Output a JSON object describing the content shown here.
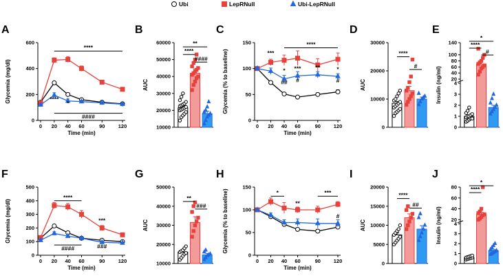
{
  "colors": {
    "ubi": "#000000",
    "ubi_fill": "#ffffff",
    "lep": "#e8413b",
    "lep_fill": "#f79494",
    "lep_bar": "#f59a9a",
    "blue": "#2167e0",
    "blue_bar": "#2e9af0"
  },
  "legend": [
    {
      "label": "Ubi",
      "marker": "circle",
      "series": "ubi"
    },
    {
      "label": "LepRNull",
      "marker": "square",
      "series": "lep"
    },
    {
      "label": "Ubi-LepRNull",
      "marker": "triangle",
      "series": "blue"
    }
  ],
  "chart_data": [
    {
      "panel": "A",
      "type": "line",
      "xlabel": "Time (min)",
      "ylabel": "Glycemia (mg/dl)",
      "x": [
        0,
        20,
        40,
        60,
        90,
        120
      ],
      "xticks": [
        "0",
        "20",
        "40",
        "60",
        "90",
        "120"
      ],
      "ylim": [
        0,
        600
      ],
      "yticks": [
        "0",
        "200",
        "400",
        "600"
      ],
      "series": [
        {
          "name": "Ubi",
          "key": "ubi",
          "values": [
            140,
            290,
            200,
            160,
            140,
            128
          ],
          "err": [
            8,
            10,
            8,
            6,
            5,
            5
          ]
        },
        {
          "name": "LepRNull",
          "key": "lep",
          "values": [
            135,
            465,
            470,
            400,
            295,
            240
          ],
          "err": [
            10,
            18,
            22,
            20,
            15,
            12
          ]
        },
        {
          "name": "Ubi-LepRNull",
          "key": "blue",
          "values": [
            120,
            195,
            150,
            145,
            135,
            125
          ],
          "err": [
            8,
            18,
            15,
            10,
            8,
            6
          ]
        }
      ],
      "annotations": [
        {
          "text": "****",
          "x1": 20,
          "x2": 120,
          "y": 535,
          "kind": "bar"
        },
        {
          "text": "****",
          "x": 20,
          "y": 150,
          "kind": "text"
        },
        {
          "text": "*",
          "x": 40,
          "y": 118,
          "kind": "text"
        },
        {
          "text": "####",
          "x1": 20,
          "x2": 120,
          "y": 55,
          "kind": "barBelow"
        }
      ]
    },
    {
      "panel": "B",
      "type": "bar",
      "ylabel": "AUC",
      "ylim": [
        10000,
        60000
      ],
      "yticks": [
        "10000",
        "20000",
        "30000",
        "40000",
        "50000",
        "60000"
      ],
      "categories": [
        "Ubi",
        "LepRNull",
        "Ubi-LepRNull"
      ],
      "values": [
        21500,
        42000,
        18000
      ],
      "err": [
        1200,
        2500,
        1500
      ],
      "points": [
        [
          14000,
          16000,
          17000,
          18000,
          19000,
          20000,
          20500,
          21000,
          21500,
          22000,
          22500,
          23000,
          23500,
          24000,
          25000,
          26000,
          28000,
          30000
        ],
        [
          32000,
          35000,
          37000,
          39000,
          40000,
          41000,
          42000,
          43000,
          44000,
          45000,
          46000,
          48000,
          50000,
          53000
        ],
        [
          12000,
          14000,
          16000,
          17000,
          18000,
          19000,
          20000,
          22000,
          25000
        ]
      ],
      "annotations": [
        {
          "text": "**",
          "c1": 0,
          "c2": 2,
          "y": 57500
        },
        {
          "text": "****",
          "c1": 0,
          "c2": 1,
          "y": 53000
        },
        {
          "text": "####",
          "c1": 1,
          "c2": 2,
          "y": 48500
        }
      ]
    },
    {
      "panel": "C",
      "type": "line",
      "xlabel": "Time (min)",
      "ylabel": "Glycemia (% to baseline)",
      "x": [
        0,
        20,
        40,
        60,
        90,
        120
      ],
      "xticks": [
        "0",
        "20",
        "40",
        "60",
        "90",
        "120"
      ],
      "ylim": [
        0,
        150
      ],
      "yticks": [
        "0",
        "50",
        "100",
        "150"
      ],
      "series": [
        {
          "name": "Ubi",
          "key": "ubi",
          "values": [
            100,
            73,
            51,
            45,
            50,
            55
          ],
          "err": [
            2,
            3,
            3,
            2,
            3,
            4
          ]
        },
        {
          "name": "LepRNull",
          "key": "lep",
          "values": [
            100,
            112,
            116,
            120,
            107,
            118
          ],
          "err": [
            3,
            6,
            10,
            14,
            12,
            12
          ]
        },
        {
          "name": "Ubi-LepRNull",
          "key": "blue",
          "values": [
            100,
            95,
            80,
            86,
            88,
            85
          ],
          "err": [
            3,
            6,
            7,
            8,
            6,
            5
          ]
        }
      ],
      "annotations": [
        {
          "text": "***",
          "x": 20,
          "y": 126,
          "kind": "text"
        },
        {
          "text": "****",
          "x1": 40,
          "x2": 120,
          "y": 140,
          "kind": "bar"
        },
        {
          "text": "*",
          "x": 40,
          "y": 92,
          "kind": "text"
        },
        {
          "text": "##",
          "x": 40,
          "y": 70,
          "kind": "text"
        },
        {
          "text": "***",
          "x": 60,
          "y": 96,
          "kind": "text"
        },
        {
          "text": "#",
          "x": 60,
          "y": 74,
          "kind": "text"
        },
        {
          "text": "**",
          "x": 90,
          "y": 98,
          "kind": "text"
        },
        {
          "text": "*",
          "x": 120,
          "y": 95,
          "kind": "text"
        },
        {
          "text": "#",
          "x": 120,
          "y": 73,
          "kind": "text"
        }
      ]
    },
    {
      "panel": "D",
      "type": "bar",
      "ylabel": "AUC",
      "ylim": [
        0,
        30000
      ],
      "yticks": [
        "0",
        "10000",
        "20000",
        "30000"
      ],
      "categories": [
        "Ubi",
        "LepRNull",
        "Ubi-LepRNull"
      ],
      "values": [
        8500,
        13000,
        10000
      ],
      "err": [
        600,
        1500,
        700
      ],
      "points": [
        [
          4000,
          5000,
          5500,
          6000,
          6500,
          7000,
          7500,
          8000,
          8500,
          9000,
          9500,
          10000,
          11000,
          12000,
          13000
        ],
        [
          8000,
          9000,
          10000,
          11000,
          12000,
          13000,
          14000,
          16000,
          18000,
          24000
        ],
        [
          8000,
          9000,
          10000,
          10500,
          11000,
          12000
        ]
      ],
      "annotations": [
        {
          "text": "****",
          "c1": 0,
          "c2": 1,
          "y": 25000
        },
        {
          "text": "#",
          "c1": 1,
          "c2": 2,
          "y": 20500
        }
      ]
    },
    {
      "panel": "E",
      "type": "bar",
      "ylabel": "Insulin (ng/ml)",
      "yscale": "broken",
      "yticks": [
        "0",
        "1",
        "2",
        "3",
        "4",
        "20",
        "40",
        "60",
        "80",
        "100",
        "140"
      ],
      "categories": [
        "Ubi",
        "LepRNull",
        "Ubi-LepRNull"
      ],
      "values": [
        1.0,
        70,
        1.8
      ],
      "err": [
        0.1,
        12,
        0.2
      ],
      "points": [
        [
          0.5,
          0.6,
          0.7,
          0.8,
          0.8,
          0.9,
          1.0,
          1.0,
          1.1,
          1.2,
          1.3,
          1.5,
          1.8
        ],
        [
          35,
          45,
          55,
          60,
          65,
          70,
          75,
          80,
          90,
          100,
          120
        ],
        [
          1.2,
          1.4,
          1.6,
          1.8,
          2.0,
          2.2,
          2.6,
          3.0
        ]
      ],
      "annotations": [
        {
          "text": "*",
          "c1": 0,
          "c2": 2,
          "y": "top"
        },
        {
          "text": "****",
          "c1": 0,
          "c2": 1,
          "y": "mid"
        },
        {
          "text": "#",
          "c1": 1,
          "c2": 2,
          "y": "low"
        }
      ]
    },
    {
      "panel": "F",
      "type": "line",
      "xlabel": "Time (min)",
      "ylabel": "Glycemia (mg/dl)",
      "x": [
        0,
        20,
        40,
        60,
        90,
        120
      ],
      "xticks": [
        "0",
        "20",
        "40",
        "60",
        "90",
        "120"
      ],
      "ylim": [
        0,
        500
      ],
      "yticks": [
        "0",
        "100",
        "200",
        "300",
        "400",
        "500"
      ],
      "series": [
        {
          "name": "Ubi",
          "key": "ubi",
          "values": [
            125,
            215,
            165,
            125,
            110,
            100
          ],
          "err": [
            6,
            10,
            8,
            6,
            5,
            5
          ]
        },
        {
          "name": "LepRNull",
          "key": "lep",
          "values": [
            130,
            365,
            355,
            300,
            200,
            150
          ],
          "err": [
            12,
            22,
            25,
            28,
            18,
            12
          ]
        },
        {
          "name": "Ubi-LepRNull",
          "key": "blue",
          "values": [
            110,
            160,
            140,
            125,
            95,
            90
          ],
          "err": [
            8,
            12,
            10,
            8,
            6,
            6
          ]
        }
      ],
      "annotations": [
        {
          "text": "****",
          "x1": 20,
          "x2": 60,
          "y": 400,
          "kind": "bar"
        },
        {
          "text": "***",
          "x": 90,
          "y": 240,
          "kind": "text"
        },
        {
          "text": "####",
          "x1": 20,
          "x2": 60,
          "y": 75,
          "kind": "barBelow"
        },
        {
          "text": "###",
          "x": 90,
          "y": 50,
          "kind": "text"
        }
      ]
    },
    {
      "panel": "G",
      "type": "bar",
      "ylabel": "AUC",
      "ylim": [
        10000,
        50000
      ],
      "yticks": [
        "10000",
        "20000",
        "30000",
        "40000",
        "50000"
      ],
      "categories": [
        "Ubi",
        "LepRNull",
        "Ubi-LepRNull"
      ],
      "values": [
        16000,
        31500,
        14500
      ],
      "err": [
        900,
        3000,
        800
      ],
      "points": [
        [
          12000,
          13000,
          14000,
          15000,
          15500,
          16000,
          16500,
          17000,
          18000,
          19000
        ],
        [
          24000,
          27000,
          30000,
          32000,
          34000,
          37000,
          40000,
          42000
        ],
        [
          12000,
          13000,
          14000,
          14500,
          15000,
          16000,
          17000
        ]
      ],
      "annotations": [
        {
          "text": "**",
          "c1": 0,
          "c2": 1,
          "y": 42500
        },
        {
          "text": "###",
          "c1": 1,
          "c2": 2,
          "y": 38500
        }
      ]
    },
    {
      "panel": "H",
      "type": "line",
      "xlabel": "Time (min)",
      "ylabel": "Glycemia (% to baseline)",
      "x": [
        0,
        20,
        40,
        60,
        90,
        120
      ],
      "xticks": [
        "0",
        "20",
        "40",
        "60",
        "90",
        "120"
      ],
      "ylim": [
        0,
        150
      ],
      "yticks": [
        "0",
        "50",
        "100",
        "150"
      ],
      "series": [
        {
          "name": "Ubi",
          "key": "ubi",
          "values": [
            100,
            85,
            68,
            57,
            53,
            62
          ],
          "err": [
            2,
            3,
            3,
            3,
            4,
            3
          ]
        },
        {
          "name": "LepRNull",
          "key": "lep",
          "values": [
            100,
            118,
            104,
            100,
            100,
            112
          ],
          "err": [
            3,
            8,
            12,
            6,
            8,
            6
          ]
        },
        {
          "name": "Ubi-LepRNull",
          "key": "blue",
          "values": [
            100,
            88,
            72,
            72,
            70,
            70
          ],
          "err": [
            3,
            5,
            6,
            8,
            10,
            8
          ]
        }
      ],
      "annotations": [
        {
          "text": "*",
          "x1": 20,
          "x2": 40,
          "y": 130,
          "kind": "bar"
        },
        {
          "text": "***",
          "x1": 90,
          "x2": 120,
          "y": 130,
          "kind": "bar"
        },
        {
          "text": "**",
          "x": 60,
          "y": 110,
          "kind": "text"
        },
        {
          "text": "#",
          "x": 120,
          "y": 82,
          "kind": "text"
        }
      ]
    },
    {
      "panel": "I",
      "type": "bar",
      "ylabel": "AUC",
      "ylim": [
        0,
        20000
      ],
      "yticks": [
        "0",
        "5000",
        "10000",
        "15000",
        "20000"
      ],
      "categories": [
        "Ubi",
        "LepRNull",
        "Ubi-LepRNull"
      ],
      "values": [
        7500,
        12000,
        9000
      ],
      "err": [
        500,
        1000,
        900
      ],
      "points": [
        [
          5000,
          5500,
          6000,
          6500,
          7000,
          7500,
          8000,
          8500,
          9000,
          10000
        ],
        [
          9000,
          10000,
          11000,
          12000,
          13000,
          14000,
          15000
        ],
        [
          6000,
          7000,
          8000,
          9000,
          10000,
          12000,
          13000
        ]
      ],
      "annotations": [
        {
          "text": "****",
          "c1": 0,
          "c2": 1,
          "y": 17000
        },
        {
          "text": "##",
          "c1": 1,
          "c2": 2,
          "y": 14500
        }
      ]
    },
    {
      "panel": "J",
      "type": "bar",
      "ylabel": "Insulin (ng/ml)",
      "yscale": "broken",
      "yticks": [
        "0",
        "1",
        "2",
        "3",
        "4",
        "20",
        "40",
        "60",
        "80"
      ],
      "categories": [
        "Ubi",
        "LepRNull",
        "Ubi-LepRNull"
      ],
      "values": [
        0.6,
        30,
        1.3
      ],
      "err": [
        0.05,
        4,
        0.1
      ],
      "points": [
        [
          0.4,
          0.45,
          0.5,
          0.55,
          0.6,
          0.6,
          0.65,
          0.7,
          0.75,
          0.8
        ],
        [
          20,
          22,
          25,
          28,
          30,
          32,
          35,
          40,
          80
        ],
        [
          0.9,
          1.0,
          1.1,
          1.2,
          1.3,
          1.4,
          1.6,
          1.8,
          2.0
        ]
      ],
      "annotations": [
        {
          "text": "*",
          "c1": 0,
          "c2": 2,
          "y": "top"
        },
        {
          "text": "****",
          "c1": 0,
          "c2": 1,
          "y": "mid"
        }
      ]
    }
  ]
}
